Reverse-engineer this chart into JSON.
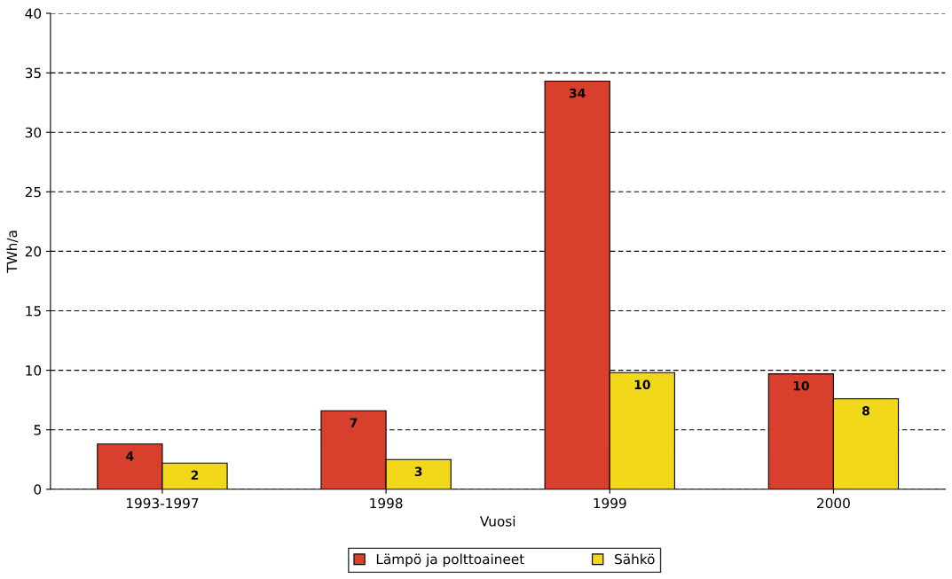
{
  "chart_data": {
    "type": "bar",
    "xlabel": "Vuosi",
    "ylabel": "TWh/a",
    "categories": [
      "1993-1997",
      "1998",
      "1999",
      "2000"
    ],
    "series": [
      {
        "name": "Lämpö ja polttoaineet",
        "color": "#d83f2c",
        "values": [
          3.8,
          6.6,
          34.3,
          9.7
        ],
        "value_labels": [
          "4",
          "7",
          "34",
          "10"
        ]
      },
      {
        "name": "Sähkö",
        "color": "#f2d81b",
        "values": [
          2.2,
          2.5,
          9.8,
          7.6
        ],
        "value_labels": [
          "2",
          "3",
          "10",
          "8"
        ]
      }
    ],
    "ylim": [
      0,
      40
    ],
    "yticks": [
      0,
      5,
      10,
      15,
      20,
      25,
      30,
      35,
      40
    ],
    "grid": "y",
    "legend": "bottom"
  }
}
